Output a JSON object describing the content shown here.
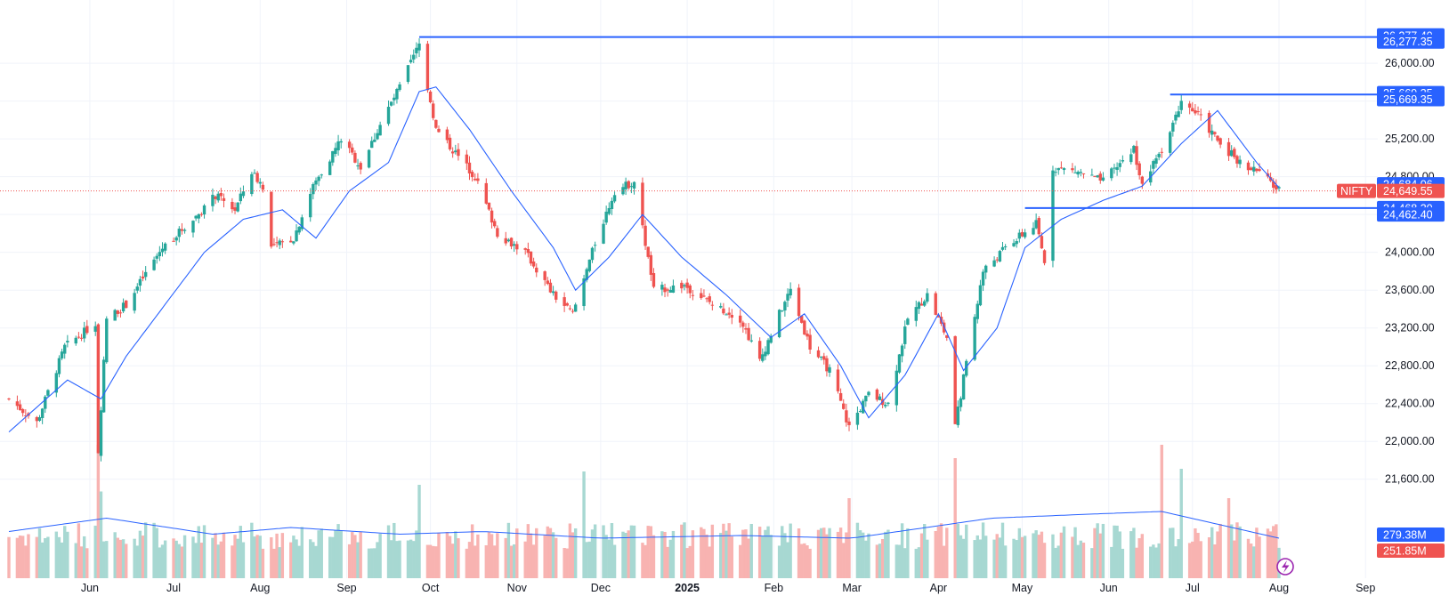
{
  "chart_data": {
    "type": "candlestick",
    "symbol": "NIFTY",
    "colors": {
      "up": "#26a69a",
      "down": "#ef5350",
      "vol_up": "#a7d8d2",
      "vol_down": "#f8b3b1",
      "ma": "#2962ff",
      "hline": "#2962ff",
      "last_price": "#ef5350",
      "grid": "#f0f3fa"
    },
    "price_axis": {
      "min": 21400,
      "max": 26500,
      "ticks": [
        "21,600.00",
        "22,000.00",
        "22,400.00",
        "22,800.00",
        "23,200.00",
        "23,600.00",
        "24,000.00",
        "24,400.00",
        "24,800.00",
        "25,200.00",
        "25,600.00",
        "26,000.00"
      ]
    },
    "time_axis": [
      {
        "label": "Jun",
        "date": "2024-06-01"
      },
      {
        "label": "Jul",
        "date": "2024-07-01"
      },
      {
        "label": "Aug",
        "date": "2024-08-01"
      },
      {
        "label": "Sep",
        "date": "2024-09-01"
      },
      {
        "label": "Oct",
        "date": "2024-10-01"
      },
      {
        "label": "Nov",
        "date": "2024-11-01"
      },
      {
        "label": "Dec",
        "date": "2024-12-01"
      },
      {
        "label": "2025",
        "date": "2025-01-01",
        "bold": true
      },
      {
        "label": "Feb",
        "date": "2025-02-01"
      },
      {
        "label": "Mar",
        "date": "2025-03-01"
      },
      {
        "label": "Apr",
        "date": "2025-04-01"
      },
      {
        "label": "May",
        "date": "2025-05-01"
      },
      {
        "label": "Jun",
        "date": "2025-06-01"
      },
      {
        "label": "Jul",
        "date": "2025-07-01"
      },
      {
        "label": "Aug",
        "date": "2025-08-01"
      },
      {
        "label": "Sep",
        "date": "2025-09-01"
      }
    ],
    "date_range": {
      "start": "2024-05-03",
      "end": "2025-08-01"
    },
    "close_path": [
      [
        "2024-05-03",
        22450
      ],
      [
        "2024-05-13",
        22200
      ],
      [
        "2024-05-23",
        23000
      ],
      [
        "2024-06-03",
        23250
      ],
      [
        "2024-06-04",
        21900
      ],
      [
        "2024-06-07",
        23300
      ],
      [
        "2024-06-14",
        23450
      ],
      [
        "2024-06-27",
        24050
      ],
      [
        "2024-07-08",
        24350
      ],
      [
        "2024-07-16",
        24600
      ],
      [
        "2024-07-23",
        24450
      ],
      [
        "2024-07-29",
        24850
      ],
      [
        "2024-08-02",
        24700
      ],
      [
        "2024-08-05",
        24050
      ],
      [
        "2024-08-13",
        24150
      ],
      [
        "2024-08-20",
        24700
      ],
      [
        "2024-08-30",
        25200
      ],
      [
        "2024-09-06",
        24900
      ],
      [
        "2024-09-13",
        25350
      ],
      [
        "2024-09-20",
        25750
      ],
      [
        "2024-09-27",
        26200
      ],
      [
        "2024-10-03",
        25300
      ],
      [
        "2024-10-10",
        25050
      ],
      [
        "2024-10-17",
        24800
      ],
      [
        "2024-10-25",
        24200
      ],
      [
        "2024-11-04",
        24000
      ],
      [
        "2024-11-14",
        23550
      ],
      [
        "2024-11-21",
        23350
      ],
      [
        "2024-11-29",
        24100
      ],
      [
        "2024-12-06",
        24650
      ],
      [
        "2024-12-13",
        24750
      ],
      [
        "2024-12-20",
        23600
      ],
      [
        "2024-12-31",
        23650
      ],
      [
        "2025-01-10",
        23450
      ],
      [
        "2025-01-20",
        23300
      ],
      [
        "2025-01-27",
        22850
      ],
      [
        "2025-02-03",
        23350
      ],
      [
        "2025-02-07",
        23600
      ],
      [
        "2025-02-14",
        23000
      ],
      [
        "2025-02-21",
        22750
      ],
      [
        "2025-02-28",
        22150
      ],
      [
        "2025-03-07",
        22500
      ],
      [
        "2025-03-14",
        22400
      ],
      [
        "2025-03-21",
        23300
      ],
      [
        "2025-03-28",
        23550
      ],
      [
        "2025-04-04",
        23100
      ],
      [
        "2025-04-07",
        22150
      ],
      [
        "2025-04-11",
        22850
      ],
      [
        "2025-04-17",
        23800
      ],
      [
        "2025-04-25",
        24050
      ],
      [
        "2025-05-06",
        24300
      ],
      [
        "2025-05-09",
        23900
      ],
      [
        "2025-05-12",
        24900
      ],
      [
        "2025-05-21",
        24850
      ],
      [
        "2025-05-30",
        24750
      ],
      [
        "2025-06-10",
        25100
      ],
      [
        "2025-06-13",
        24700
      ],
      [
        "2025-06-20",
        25100
      ],
      [
        "2025-06-27",
        25600
      ],
      [
        "2025-07-03",
        25450
      ],
      [
        "2025-07-11",
        25150
      ],
      [
        "2025-07-18",
        24950
      ],
      [
        "2025-07-25",
        24850
      ],
      [
        "2025-08-01",
        24649.55
      ]
    ],
    "moving_average_path": [
      [
        "2024-05-03",
        22100
      ],
      [
        "2024-05-24",
        22650
      ],
      [
        "2024-06-05",
        22450
      ],
      [
        "2024-06-14",
        22900
      ],
      [
        "2024-06-28",
        23450
      ],
      [
        "2024-07-12",
        24000
      ],
      [
        "2024-07-26",
        24350
      ],
      [
        "2024-08-09",
        24450
      ],
      [
        "2024-08-21",
        24150
      ],
      [
        "2024-09-02",
        24650
      ],
      [
        "2024-09-16",
        24950
      ],
      [
        "2024-09-27",
        25700
      ],
      [
        "2024-10-03",
        25750
      ],
      [
        "2024-10-15",
        25300
      ],
      [
        "2024-10-30",
        24650
      ],
      [
        "2024-11-14",
        24050
      ],
      [
        "2024-11-22",
        23600
      ],
      [
        "2024-12-04",
        23950
      ],
      [
        "2024-12-16",
        24400
      ],
      [
        "2024-12-30",
        23950
      ],
      [
        "2025-01-15",
        23550
      ],
      [
        "2025-01-31",
        23100
      ],
      [
        "2025-02-12",
        23350
      ],
      [
        "2025-02-25",
        22800
      ],
      [
        "2025-03-07",
        22250
      ],
      [
        "2025-03-20",
        22700
      ],
      [
        "2025-04-01",
        23350
      ],
      [
        "2025-04-10",
        22750
      ],
      [
        "2025-04-22",
        23200
      ],
      [
        "2025-05-02",
        24050
      ],
      [
        "2025-05-15",
        24350
      ],
      [
        "2025-05-30",
        24550
      ],
      [
        "2025-06-13",
        24700
      ],
      [
        "2025-06-27",
        25150
      ],
      [
        "2025-07-10",
        25500
      ],
      [
        "2025-07-24",
        24950
      ],
      [
        "2025-08-01",
        24684.06
      ]
    ],
    "volume_ma_path": [
      [
        "2024-05-03",
        0.35
      ],
      [
        "2024-06-07",
        0.45
      ],
      [
        "2024-07-15",
        0.33
      ],
      [
        "2024-08-12",
        0.38
      ],
      [
        "2024-09-20",
        0.33
      ],
      [
        "2024-10-20",
        0.35
      ],
      [
        "2024-12-01",
        0.3
      ],
      [
        "2025-01-20",
        0.32
      ],
      [
        "2025-03-01",
        0.3
      ],
      [
        "2025-04-20",
        0.45
      ],
      [
        "2025-05-25",
        0.48
      ],
      [
        "2025-06-20",
        0.5
      ],
      [
        "2025-08-01",
        0.3
      ]
    ],
    "volume_spikes": [
      [
        "2024-06-04",
        1.0
      ],
      [
        "2024-06-05",
        0.65
      ],
      [
        "2024-09-27",
        0.7
      ],
      [
        "2024-11-25",
        0.8
      ],
      [
        "2025-04-07",
        0.9
      ],
      [
        "2025-06-27",
        0.82
      ],
      [
        "2025-06-20",
        1.0
      ],
      [
        "2025-07-14",
        0.6
      ],
      [
        "2025-02-28",
        0.6
      ]
    ],
    "horizontal_lines": [
      {
        "price": 26277.4,
        "start": "2024-09-27"
      },
      {
        "price": 25669.35,
        "start": "2025-06-23"
      },
      {
        "price": 24468.3,
        "start": "2025-05-02"
      }
    ],
    "last_price": 24649.55,
    "price_tags": [
      {
        "text": "26,277.40",
        "price": 26295,
        "style": "filled"
      },
      {
        "text": "26,277.35",
        "price": 26230,
        "style": "filled"
      },
      {
        "text": "25,669.35",
        "price": 25685,
        "style": "filled"
      },
      {
        "text": "25,669.35",
        "price": 25620,
        "style": "filled"
      },
      {
        "text": "24,684.06",
        "price": 24720,
        "style": "filled"
      },
      {
        "text": "24,649.55",
        "price": 24649.55,
        "style": "red"
      },
      {
        "text": "24,468.30",
        "price": 24468.3,
        "style": "filled"
      },
      {
        "text": "24,462.40",
        "price": 24400,
        "style": "filled"
      }
    ],
    "symbol_tag": "NIFTY",
    "volume_tags": [
      {
        "text": "279.38M",
        "style": "filled"
      },
      {
        "text": "251.85M",
        "style": "red"
      }
    ]
  },
  "icons": {
    "lightning": "lightning-icon"
  }
}
